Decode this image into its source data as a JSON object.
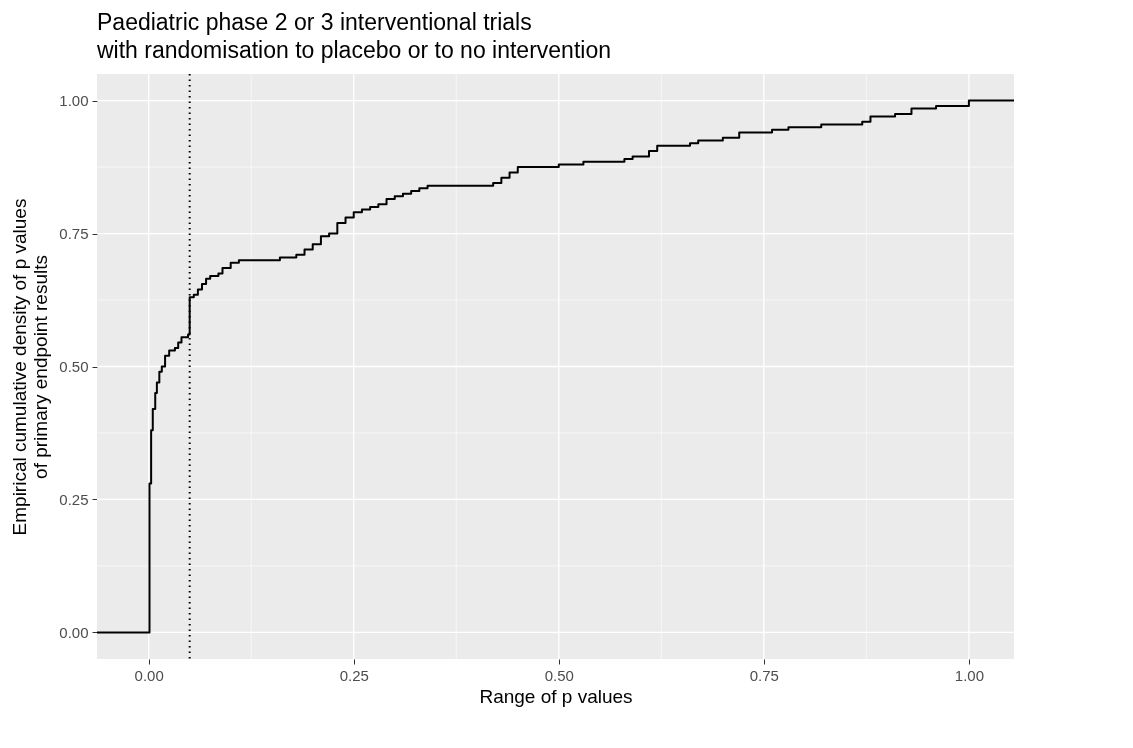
{
  "chart_data": {
    "type": "step",
    "title": [
      "Paediatric phase 2 or 3 interventional trials",
      "with randomisation to placebo or to no intervention"
    ],
    "xlabel": "Range of p values",
    "ylabel": [
      "Empirical cumulative density of p values",
      "of primary endpoint results"
    ],
    "x": [
      -0.063,
      0,
      0.001,
      0.003,
      0.005,
      0.008,
      0.01,
      0.013,
      0.016,
      0.02,
      0.025,
      0.032,
      0.036,
      0.04,
      0.048,
      0.05,
      0.055,
      0.06,
      0.065,
      0.07,
      0.075,
      0.085,
      0.09,
      0.1,
      0.11,
      0.16,
      0.18,
      0.19,
      0.2,
      0.21,
      0.22,
      0.23,
      0.24,
      0.25,
      0.26,
      0.27,
      0.28,
      0.29,
      0.3,
      0.31,
      0.32,
      0.33,
      0.34,
      0.42,
      0.43,
      0.44,
      0.45,
      0.5,
      0.53,
      0.58,
      0.59,
      0.61,
      0.62,
      0.66,
      0.67,
      0.7,
      0.72,
      0.76,
      0.78,
      0.82,
      0.87,
      0.88,
      0.91,
      0.93,
      0.96,
      1.0,
      1.055
    ],
    "series": [
      {
        "color": "#000000",
        "values": [
          0,
          0,
          0.28,
          0.38,
          0.42,
          0.45,
          0.47,
          0.49,
          0.5,
          0.52,
          0.53,
          0.535,
          0.545,
          0.555,
          0.56,
          0.63,
          0.635,
          0.645,
          0.655,
          0.665,
          0.67,
          0.675,
          0.685,
          0.695,
          0.7,
          0.705,
          0.71,
          0.72,
          0.73,
          0.745,
          0.75,
          0.77,
          0.78,
          0.79,
          0.795,
          0.8,
          0.805,
          0.815,
          0.82,
          0.825,
          0.83,
          0.835,
          0.84,
          0.845,
          0.855,
          0.865,
          0.875,
          0.88,
          0.885,
          0.89,
          0.895,
          0.905,
          0.915,
          0.92,
          0.925,
          0.93,
          0.94,
          0.945,
          0.95,
          0.955,
          0.96,
          0.97,
          0.975,
          0.985,
          0.99,
          1.0,
          1.0
        ]
      }
    ],
    "xlim": [
      -0.063,
      1.055
    ],
    "ylim": [
      -0.05,
      1.05
    ],
    "xticks": [
      {
        "value": 0,
        "label": "0.00"
      },
      {
        "value": 0.125,
        "label": null
      },
      {
        "value": 0.25,
        "label": "0.25"
      },
      {
        "value": 0.375,
        "label": null
      },
      {
        "value": 0.5,
        "label": "0.50"
      },
      {
        "value": 0.625,
        "label": null
      },
      {
        "value": 0.75,
        "label": "0.75"
      },
      {
        "value": 0.875,
        "label": null
      },
      {
        "value": 1,
        "label": "1.00"
      }
    ],
    "yticks": [
      {
        "value": 0,
        "label": "0.00"
      },
      {
        "value": 0.125,
        "label": null
      },
      {
        "value": 0.25,
        "label": "0.25"
      },
      {
        "value": 0.375,
        "label": null
      },
      {
        "value": 0.5,
        "label": "0.50"
      },
      {
        "value": 0.625,
        "label": null
      },
      {
        "value": 0.75,
        "label": "0.75"
      },
      {
        "value": 0.875,
        "label": null
      },
      {
        "value": 1,
        "label": "1.00"
      }
    ],
    "ref_lines": [
      {
        "axis": "x",
        "value": 0.05,
        "color": "#000000",
        "line_style": "dotted"
      }
    ],
    "grid": true,
    "line_style": "solid"
  }
}
